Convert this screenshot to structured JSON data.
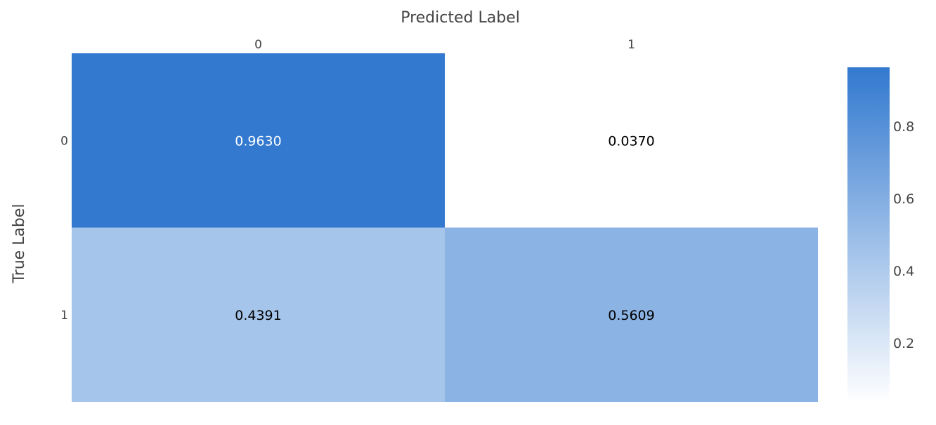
{
  "chart_data": {
    "type": "heatmap",
    "xlabel": "Predicted Label",
    "ylabel": "True Label",
    "x_categories": [
      "0",
      "1"
    ],
    "y_categories": [
      "0",
      "1"
    ],
    "values": [
      [
        0.963,
        0.037
      ],
      [
        0.4391,
        0.5609
      ]
    ],
    "cell_labels": [
      [
        "0.9630",
        "0.0370"
      ],
      [
        "0.4391",
        "0.5609"
      ]
    ],
    "colorscale": [
      "#ffffff",
      "#3279cf"
    ],
    "zmin": 0.037,
    "zmax": 0.963,
    "colorbar": {
      "ticks": [
        0.2,
        0.4,
        0.6,
        0.8
      ],
      "tick_labels": [
        "0.2",
        "0.4",
        "0.6",
        "0.8"
      ]
    },
    "text_colors": {
      "dark_bg": "#ffffff",
      "light_bg": "#000000"
    }
  }
}
